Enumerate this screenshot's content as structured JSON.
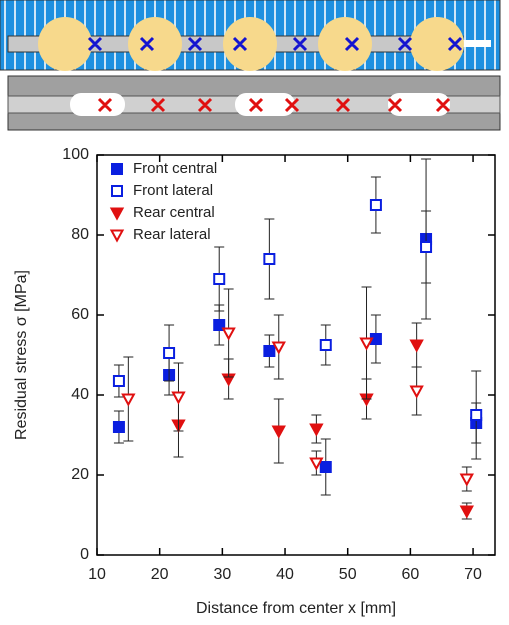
{
  "chart_data": {
    "type": "scatter",
    "xlabel": "Distance from center x [mm]",
    "ylabel": "Residual stress σ [MPa]",
    "xlim": [
      10,
      73.5
    ],
    "xticks": [
      10,
      20,
      30,
      40,
      50,
      60,
      70
    ],
    "ylim": [
      0,
      100
    ],
    "yticks": [
      0,
      20,
      40,
      60,
      80,
      100
    ],
    "legend": "upper left",
    "series": [
      {
        "name": "Front central",
        "color": "#0a1fe0",
        "marker": "square",
        "filled": true,
        "x": [
          13.5,
          21.5,
          29.5,
          37.5,
          46.5,
          54.5,
          62.5,
          70.5
        ],
        "values": [
          32,
          45,
          57.5,
          51,
          22,
          54,
          79,
          33
        ],
        "errors": [
          4,
          5,
          5,
          4,
          7,
          6,
          20,
          5
        ]
      },
      {
        "name": "Front lateral",
        "color": "#0a1fe0",
        "marker": "square",
        "filled": false,
        "x": [
          13.5,
          21.5,
          29.5,
          37.5,
          46.5,
          54.5,
          62.5,
          70.5
        ],
        "values": [
          43.5,
          50.5,
          69,
          74,
          52.5,
          87.5,
          77,
          35
        ],
        "errors": [
          4,
          7,
          8,
          10,
          5,
          7,
          9,
          11
        ]
      },
      {
        "name": "Rear central",
        "color": "#e01010",
        "marker": "triangle-down",
        "filled": true,
        "x": [
          23,
          31,
          39,
          45,
          53,
          61,
          69
        ],
        "values": [
          32.5,
          44,
          31,
          31.5,
          39,
          52.5,
          11
        ],
        "errors": [
          8,
          5,
          8,
          3.5,
          5,
          5.5,
          2
        ]
      },
      {
        "name": "Rear lateral",
        "color": "#e01010",
        "marker": "triangle-down",
        "filled": false,
        "x": [
          15,
          23,
          31,
          39,
          45,
          53,
          61,
          69
        ],
        "values": [
          39,
          39.5,
          55.5,
          52,
          23,
          53,
          41,
          19
        ],
        "errors": [
          10.5,
          8.5,
          11,
          8,
          3,
          14,
          6,
          3
        ]
      }
    ]
  }
}
